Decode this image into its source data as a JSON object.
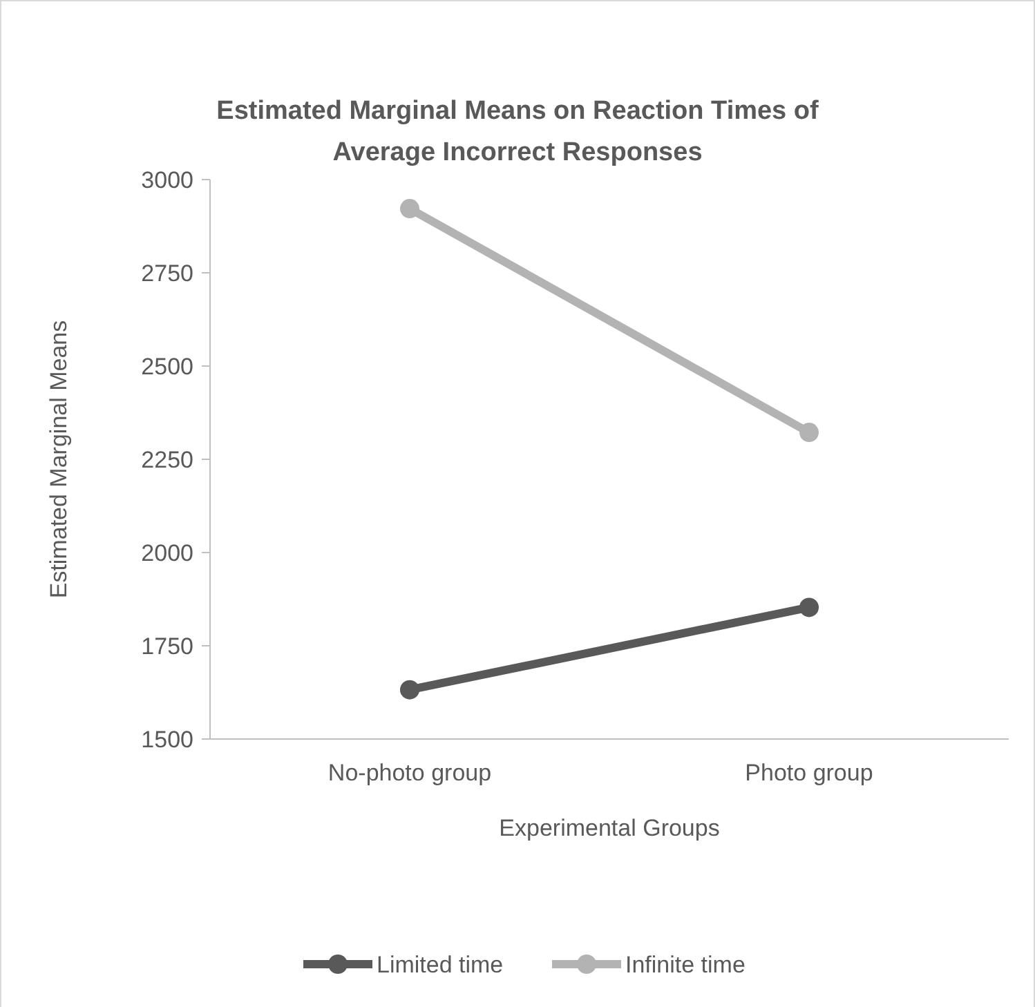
{
  "chart_data": {
    "type": "line",
    "title": "Estimated Marginal Means on Reaction Times of Average Incorrect Responses",
    "xlabel": "Experimental Groups",
    "ylabel": "Estimated Marginal Means",
    "categories": [
      "No-photo group",
      "Photo group"
    ],
    "series": [
      {
        "name": "Limited time",
        "color": "#595959",
        "values": [
          1632,
          1853
        ]
      },
      {
        "name": "Infinite time",
        "color": "#b3b3b3",
        "values": [
          2922,
          2322
        ]
      }
    ],
    "ylim": [
      1500,
      3000
    ],
    "yticks": [
      1500,
      1750,
      2000,
      2250,
      2500,
      2750,
      3000
    ],
    "grid": false,
    "legend": "bottom",
    "marker": "circle",
    "line_style": "solid"
  }
}
